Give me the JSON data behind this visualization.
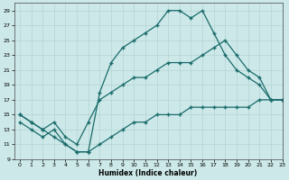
{
  "xlabel": "Humidex (Indice chaleur)",
  "ylabel": "",
  "xlim": [
    -0.5,
    23
  ],
  "ylim": [
    9,
    30
  ],
  "xticks": [
    0,
    1,
    2,
    3,
    4,
    5,
    6,
    7,
    8,
    9,
    10,
    11,
    12,
    13,
    14,
    15,
    16,
    17,
    18,
    19,
    20,
    21,
    22,
    23
  ],
  "yticks": [
    9,
    11,
    13,
    15,
    17,
    19,
    21,
    23,
    25,
    27,
    29
  ],
  "bg_color": "#cce8e8",
  "line_color": "#1a6b6b",
  "series1_x": [
    0,
    1,
    2,
    3,
    4,
    5,
    6,
    7,
    8,
    9,
    10,
    11,
    12,
    13,
    14,
    15,
    16,
    17,
    18,
    19,
    20,
    21,
    22,
    23
  ],
  "series1_y": [
    14,
    13,
    12,
    13,
    11,
    10,
    10,
    18,
    22,
    24,
    25,
    26,
    27,
    29,
    29,
    28,
    29,
    26,
    23,
    21,
    20,
    19,
    17,
    17
  ],
  "series2_x": [
    0,
    1,
    2,
    3,
    4,
    5,
    6,
    7,
    8,
    9,
    10,
    11,
    12,
    13,
    14,
    15,
    16,
    17,
    18,
    19,
    20,
    21,
    22,
    23
  ],
  "series2_y": [
    15,
    14,
    13,
    14,
    12,
    11,
    14,
    17,
    18,
    19,
    20,
    20,
    21,
    22,
    22,
    22,
    23,
    24,
    25,
    23,
    21,
    20,
    17,
    17
  ],
  "series3_x": [
    0,
    1,
    2,
    3,
    4,
    5,
    6,
    7,
    8,
    9,
    10,
    11,
    12,
    13,
    14,
    15,
    16,
    17,
    18,
    19,
    20,
    21,
    22,
    23
  ],
  "series3_y": [
    15,
    14,
    13,
    12,
    11,
    10,
    10,
    11,
    12,
    13,
    14,
    14,
    15,
    15,
    15,
    16,
    16,
    16,
    16,
    16,
    16,
    17,
    17,
    17
  ]
}
